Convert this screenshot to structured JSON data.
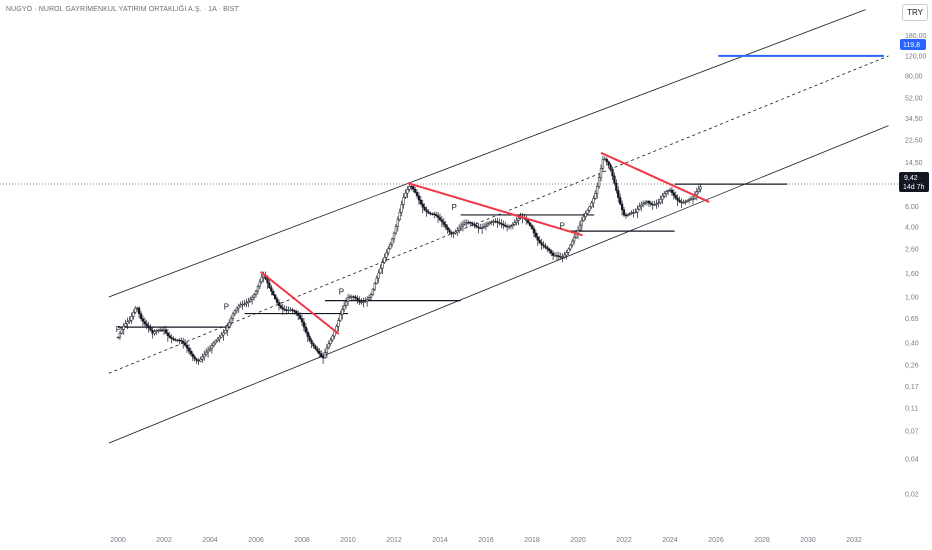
{
  "header": {
    "title": "NUGYO · NUROL GAYRİMENKUL YATIRIM ORTAKLIĞI A.Ş. · 1A · BIST",
    "currency": "TRY"
  },
  "colors": {
    "up": "#131722",
    "down": "#131722",
    "channel": "#131722",
    "trendline": "#f23645",
    "target": "#2962ff",
    "price_badge": "#131722",
    "axis_text": "#787b86"
  },
  "chart_data": {
    "type": "candlestick",
    "symbol": "NUGYO",
    "interval": "1A",
    "y_scale": "log",
    "ylim": [
      0.015,
      140
    ],
    "xlim": [
      2000,
      2034
    ],
    "y_ticks": [
      "0,02",
      "0,04",
      "0,07",
      "0,11",
      "0,17",
      "0,26",
      "0,40",
      "0,65",
      "1,00",
      "1,60",
      "2,60",
      "4,00",
      "6,00",
      "9,00",
      "14,50",
      "22,50",
      "34,50",
      "52,00",
      "80,00",
      "120,00",
      "180,00"
    ],
    "x_ticks": [
      "2000",
      "2002",
      "2004",
      "2006",
      "2008",
      "2010",
      "2012",
      "2014",
      "2016",
      "2018",
      "2020",
      "2022",
      "2024",
      "2026",
      "2028",
      "2030",
      "2032"
    ],
    "last_price": "9,42",
    "countdown": "14d 7h",
    "target_price": "119,8",
    "price_path": [
      [
        2000.0,
        0.45
      ],
      [
        2000.5,
        0.6
      ],
      [
        2000.8,
        0.9
      ],
      [
        2001.0,
        0.7
      ],
      [
        2001.5,
        0.45
      ],
      [
        2002.0,
        0.55
      ],
      [
        2002.5,
        0.42
      ],
      [
        2003.0,
        0.35
      ],
      [
        2003.5,
        0.3
      ],
      [
        2004.0,
        0.33
      ],
      [
        2004.5,
        0.5
      ],
      [
        2005.0,
        0.7
      ],
      [
        2005.5,
        0.85
      ],
      [
        2006.0,
        1.2
      ],
      [
        2006.3,
        1.5
      ],
      [
        2006.6,
        1.1
      ],
      [
        2007.0,
        0.9
      ],
      [
        2007.5,
        0.75
      ],
      [
        2008.0,
        0.6
      ],
      [
        2008.5,
        0.4
      ],
      [
        2008.9,
        0.27
      ],
      [
        2009.3,
        0.45
      ],
      [
        2009.7,
        0.8
      ],
      [
        2010.0,
        0.95
      ],
      [
        2010.5,
        0.9
      ],
      [
        2011.0,
        1.1
      ],
      [
        2011.4,
        1.6
      ],
      [
        2011.8,
        2.8
      ],
      [
        2012.1,
        4.5
      ],
      [
        2012.4,
        7.0
      ],
      [
        2012.7,
        8.5
      ],
      [
        2013.0,
        7.5
      ],
      [
        2013.5,
        5.5
      ],
      [
        2014.0,
        4.3
      ],
      [
        2014.5,
        3.8
      ],
      [
        2015.0,
        4.0
      ],
      [
        2015.5,
        4.2
      ],
      [
        2016.0,
        4.3
      ],
      [
        2016.5,
        4.1
      ],
      [
        2017.0,
        4.4
      ],
      [
        2017.5,
        4.6
      ],
      [
        2018.0,
        4.0
      ],
      [
        2018.5,
        2.8
      ],
      [
        2018.9,
        2.1
      ],
      [
        2019.3,
        2.3
      ],
      [
        2019.7,
        3.0
      ],
      [
        2020.0,
        3.5
      ],
      [
        2020.4,
        5.5
      ],
      [
        2020.8,
        9.0
      ],
      [
        2021.1,
        15.5
      ],
      [
        2021.4,
        12.0
      ],
      [
        2021.7,
        8.0
      ],
      [
        2022.0,
        5.5
      ],
      [
        2022.5,
        5.0
      ],
      [
        2023.0,
        7.0
      ],
      [
        2023.5,
        6.5
      ],
      [
        2024.0,
        8.0
      ],
      [
        2024.5,
        7.0
      ],
      [
        2025.0,
        6.5
      ],
      [
        2025.4,
        9.42
      ]
    ],
    "channel": {
      "upper": [
        [
          1999.6,
          1.0
        ],
        [
          2032.5,
          300
        ]
      ],
      "middle": [
        [
          1999.6,
          0.22
        ],
        [
          2033.5,
          119.8
        ]
      ],
      "lower": [
        [
          1999.6,
          0.055
        ],
        [
          2033.5,
          30
        ]
      ]
    },
    "trendlines": [
      [
        [
          2006.2,
          1.65
        ],
        [
          2009.6,
          0.48
        ]
      ],
      [
        [
          2012.6,
          9.6
        ],
        [
          2020.2,
          3.4
        ]
      ],
      [
        [
          2021.0,
          17.5
        ],
        [
          2025.7,
          6.6
        ]
      ]
    ],
    "horizontal_levels": [
      [
        2000.0,
        2004.9,
        0.55
      ],
      [
        2005.5,
        2010.0,
        0.72
      ],
      [
        2009.0,
        2014.9,
        0.93
      ],
      [
        2014.9,
        2020.7,
        5.1
      ],
      [
        2019.5,
        2024.2,
        3.7
      ],
      [
        2024.2,
        2029.1,
        9.4
      ]
    ],
    "target_line": [
      2026.1,
      2033.3,
      119.8
    ],
    "pivot_labels": [
      {
        "label": "P",
        "x": 1999.9,
        "y": 0.5
      },
      {
        "label": "P",
        "x": 2004.6,
        "y": 0.78
      },
      {
        "label": "P",
        "x": 2009.6,
        "y": 1.05
      },
      {
        "label": "P",
        "x": 2014.5,
        "y": 5.6
      },
      {
        "label": "P",
        "x": 2019.2,
        "y": 3.9
      }
    ]
  }
}
